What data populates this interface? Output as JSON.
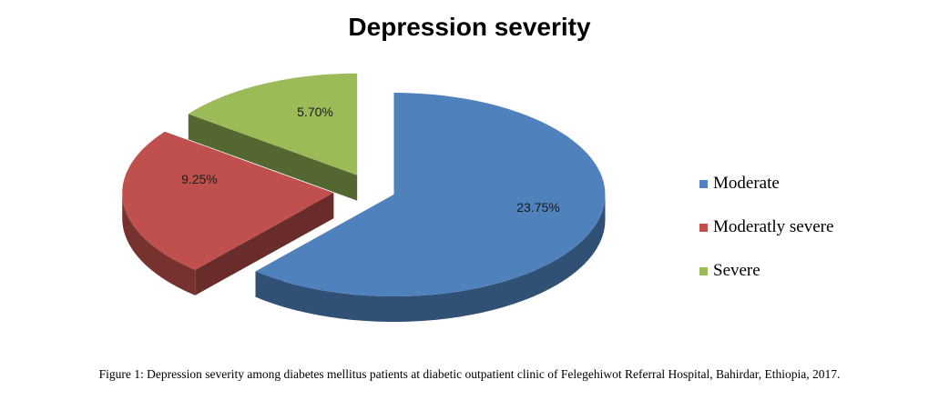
{
  "chart_data": {
    "type": "pie",
    "title": "Depression severity",
    "slices": [
      {
        "label": "Moderate",
        "value": 23.75,
        "display": "23.75%",
        "color": "#4f81bd"
      },
      {
        "label": "Moderatly severe",
        "value": 9.25,
        "display": "9.25%",
        "color": "#c0504d"
      },
      {
        "label": "Severe",
        "value": 5.7,
        "display": "5.70%",
        "color": "#9bbb59"
      }
    ],
    "legend_position": "right",
    "style": "3d-exploded"
  },
  "caption": "Figure 1: Depression severity among diabetes mellitus patients at diabetic outpatient clinic of Felegehiwot Referral Hospital, Bahirdar, Ethiopia, 2017."
}
